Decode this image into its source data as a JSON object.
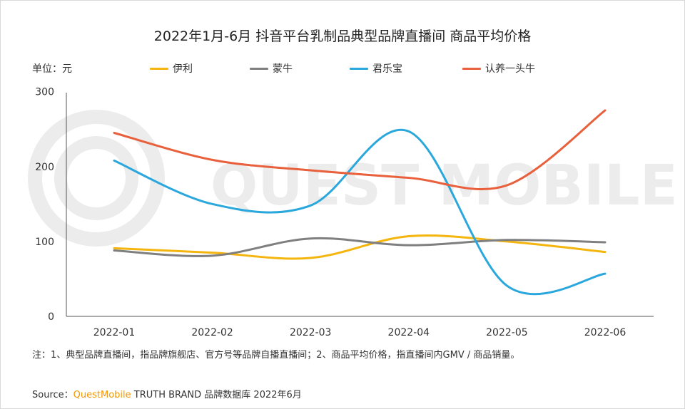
{
  "chart_data": {
    "type": "line",
    "title": "2022年1月-6月 抖音平台乳制品典型品牌直播间 商品平均价格",
    "unit_label": "单位：元",
    "categories": [
      "2022-01",
      "2022-02",
      "2022-03",
      "2022-04",
      "2022-05",
      "2022-06"
    ],
    "yticks": [
      0,
      100,
      200,
      300
    ],
    "ylim": [
      0,
      300
    ],
    "grid": false,
    "legend_position": "top",
    "series": [
      {
        "name": "伊利",
        "color": "#f5b50f",
        "values": [
          91,
          85,
          78,
          107,
          100,
          86
        ]
      },
      {
        "name": "蒙牛",
        "color": "#7f7f7f",
        "values": [
          88,
          81,
          104,
          95,
          102,
          99
        ]
      },
      {
        "name": "君乐宝",
        "color": "#2aa7dc",
        "values": [
          208,
          150,
          148,
          247,
          41,
          57
        ]
      },
      {
        "name": "认养一头牛",
        "color": "#e8603c",
        "values": [
          245,
          209,
          195,
          185,
          175,
          275
        ]
      }
    ]
  },
  "note": "注：1、典型品牌直播间，指品牌旗舰店、官方号等品牌自播直播间；2、商品平均价格，指直播间内GMV / 商品销量。",
  "source": {
    "prefix": "Source：",
    "brand": "QuestMobile",
    "rest": " TRUTH BRAND 品牌数据库 2022年6月"
  },
  "watermark": "QUEST MOBILE"
}
